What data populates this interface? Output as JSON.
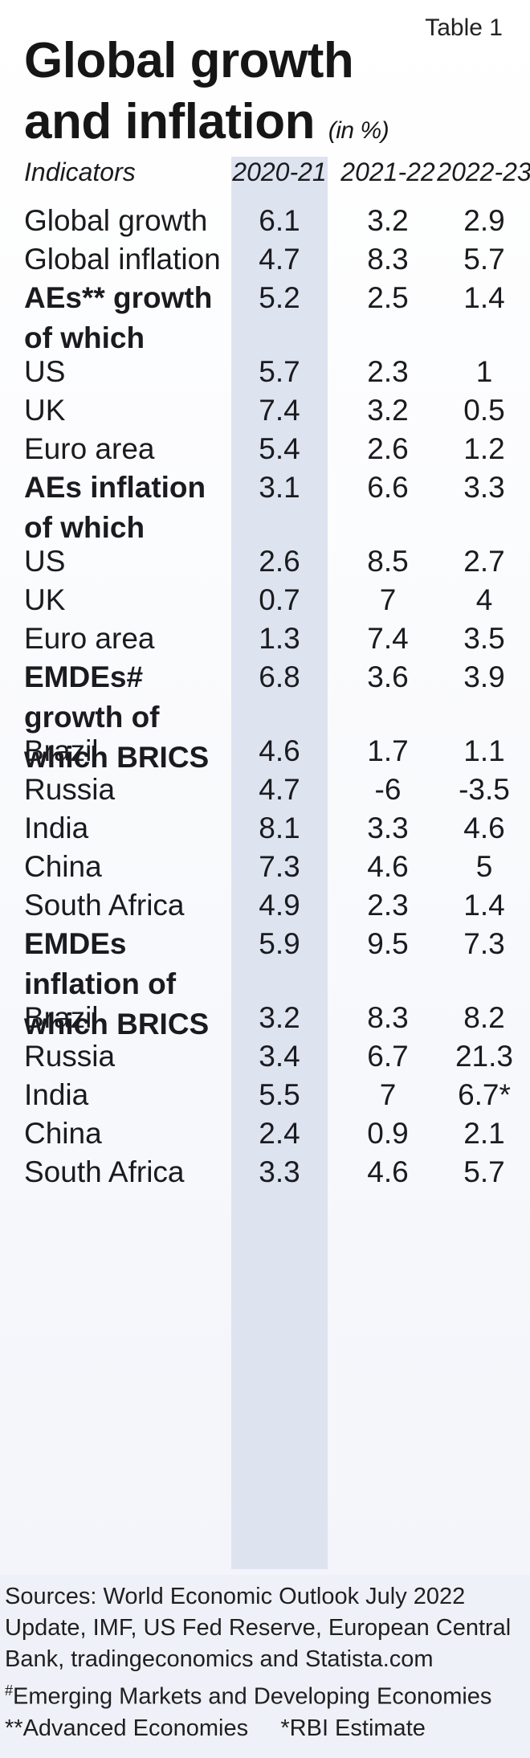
{
  "table_tag": "Table 1",
  "title_line1": "Global growth",
  "title_line2": "and inflation",
  "title_unit": "(in %)",
  "header": {
    "indicator": "Indicators",
    "years": [
      "2020-21",
      "2021-22",
      "2022-23"
    ]
  },
  "chart_data": {
    "type": "table",
    "title": "Global growth and inflation (in %)",
    "columns": [
      "Indicators",
      "2020-21",
      "2021-22",
      "2022-23"
    ],
    "rows": [
      {
        "label": "Global growth",
        "values": [
          "6.1",
          "3.2",
          "2.9"
        ],
        "group": false
      },
      {
        "label": "Global inflation",
        "values": [
          "4.7",
          "8.3",
          "5.7"
        ],
        "group": false
      },
      {
        "label": "AEs** growth of which",
        "values": [
          "5.2",
          "2.5",
          "1.4"
        ],
        "group": true
      },
      {
        "label": "US",
        "values": [
          "5.7",
          "2.3",
          "1"
        ],
        "group": false
      },
      {
        "label": "UK",
        "values": [
          "7.4",
          "3.2",
          "0.5"
        ],
        "group": false
      },
      {
        "label": "Euro area",
        "values": [
          "5.4",
          "2.6",
          "1.2"
        ],
        "group": false
      },
      {
        "label": "AEs inflation of which",
        "values": [
          "3.1",
          "6.6",
          "3.3"
        ],
        "group": true
      },
      {
        "label": "US",
        "values": [
          "2.6",
          "8.5",
          "2.7"
        ],
        "group": false
      },
      {
        "label": "UK",
        "values": [
          "0.7",
          "7",
          "4"
        ],
        "group": false
      },
      {
        "label": "Euro area",
        "values": [
          "1.3",
          "7.4",
          "3.5"
        ],
        "group": false
      },
      {
        "label": "EMDEs# growth of which BRICS",
        "values": [
          "6.8",
          "3.6",
          "3.9"
        ],
        "group": true
      },
      {
        "label": "Brazil",
        "values": [
          "4.6",
          "1.7",
          "1.1"
        ],
        "group": false
      },
      {
        "label": "Russia",
        "values": [
          "4.7",
          "-6",
          "-3.5"
        ],
        "group": false
      },
      {
        "label": "India",
        "values": [
          "8.1",
          "3.3",
          "4.6"
        ],
        "group": false
      },
      {
        "label": "China",
        "values": [
          "7.3",
          "4.6",
          "5"
        ],
        "group": false
      },
      {
        "label": "South Africa",
        "values": [
          "4.9",
          "2.3",
          "1.4"
        ],
        "group": false
      },
      {
        "label": "EMDEs inflation of which BRICS",
        "values": [
          "5.9",
          "9.5",
          "7.3"
        ],
        "group": true
      },
      {
        "label": "Brazil",
        "values": [
          "3.2",
          "8.3",
          "8.2"
        ],
        "group": false
      },
      {
        "label": "Russia",
        "values": [
          "3.4",
          "6.7",
          "21.3"
        ],
        "group": false
      },
      {
        "label": "India",
        "values": [
          "5.5",
          "7",
          "6.7*"
        ],
        "group": false
      },
      {
        "label": "China",
        "values": [
          "2.4",
          "0.9",
          "2.1"
        ],
        "group": false
      },
      {
        "label": "South Africa",
        "values": [
          "3.3",
          "4.6",
          "5.7"
        ],
        "group": false
      }
    ]
  },
  "footer": {
    "sources": "Sources: World Economic Outlook July 2022 Update, IMF, US Fed Reserve, European Central Bank, tradingeconomics and Statista.com",
    "emde_mark": "#",
    "emde_note": "Emerging Markets and Developing Economies",
    "ae_note": "**Advanced Economies",
    "rbi_note": "*RBI Estimate"
  },
  "colors": {
    "column_band": "#dde3ef",
    "text": "#1b1b1f"
  }
}
